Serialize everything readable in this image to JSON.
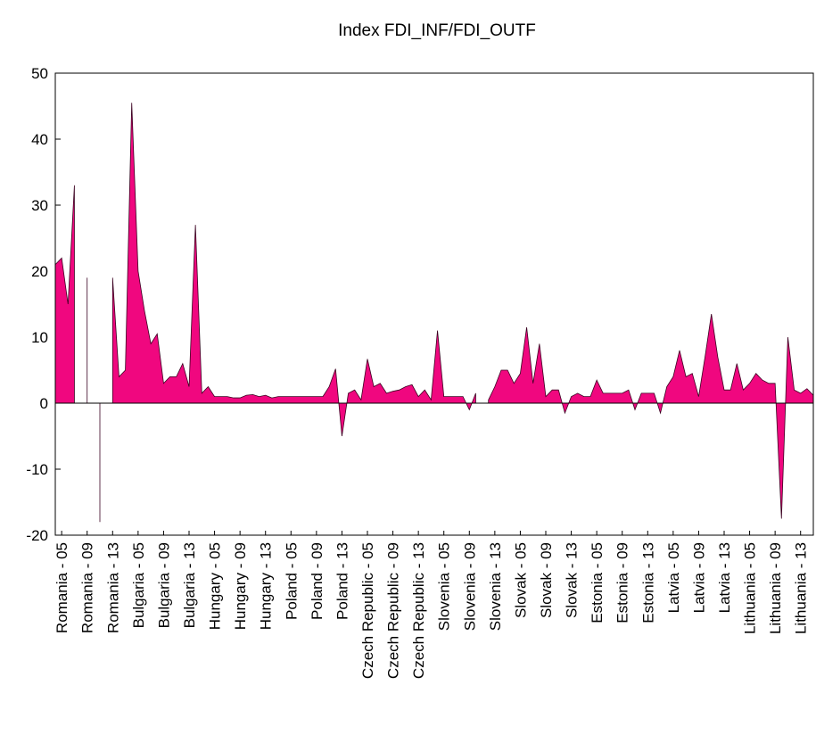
{
  "chart_data": {
    "type": "area",
    "title": "Index FDI_INF/FDI_OUTF",
    "categories": [
      null,
      "Romania - 05",
      null,
      null,
      null,
      "Romania - 09",
      null,
      null,
      null,
      "Romania - 13",
      null,
      null,
      null,
      "Bulgaria - 05",
      null,
      null,
      null,
      "Bulgaria - 09",
      null,
      null,
      null,
      "Bulgaria - 13",
      null,
      null,
      null,
      "Hungary - 05",
      null,
      null,
      null,
      "Hungary - 09",
      null,
      null,
      null,
      "Hungary - 13",
      null,
      null,
      null,
      "Poland - 05",
      null,
      null,
      null,
      "Poland - 09",
      null,
      null,
      null,
      "Poland - 13",
      null,
      null,
      null,
      "Czech Republic - 05",
      null,
      null,
      null,
      "Czech Republic - 09",
      null,
      null,
      null,
      "Czech Republic - 13",
      null,
      null,
      null,
      "Slovenia - 05",
      null,
      null,
      null,
      "Slovenia - 09",
      null,
      null,
      null,
      "Slovenia - 13",
      null,
      null,
      null,
      "Slovak - 05",
      null,
      null,
      null,
      "Slovak - 09",
      null,
      null,
      null,
      "Slovak - 13",
      null,
      null,
      null,
      "Estonia - 05",
      null,
      null,
      null,
      "Estonia - 09",
      null,
      null,
      null,
      "Estonia - 13",
      null,
      null,
      null,
      "Latvia - 05",
      null,
      null,
      null,
      "Latvia - 09",
      null,
      null,
      null,
      "Latvia - 13",
      null,
      null,
      null,
      "Lithuania - 05",
      null,
      null,
      null,
      "Lithuania - 09",
      null,
      null,
      null,
      "Lithuania - 13",
      null,
      null
    ],
    "values": [
      21,
      22,
      15,
      33,
      null,
      19,
      null,
      -18,
      null,
      19,
      4,
      5,
      45.5,
      20,
      14,
      9,
      10.5,
      3,
      4,
      4,
      6,
      2.5,
      27,
      1.5,
      2.5,
      1,
      1,
      1,
      0.8,
      0.8,
      1.2,
      1.3,
      1,
      1.2,
      0.8,
      1,
      1,
      1,
      1,
      1,
      1,
      1,
      1,
      2.5,
      5.2,
      -5,
      1.5,
      2,
      0.5,
      6.7,
      2.5,
      3,
      1.5,
      1.8,
      2,
      2.5,
      2.8,
      1,
      2,
      0.5,
      11,
      1,
      1,
      1,
      1,
      -1,
      1.5,
      null,
      0.5,
      2.5,
      5,
      5,
      3,
      4.5,
      11.5,
      3,
      9,
      1,
      2,
      2,
      -1.5,
      1,
      1.5,
      1,
      1,
      3.5,
      1.5,
      1.5,
      1.5,
      1.5,
      2,
      -1,
      1.5,
      1.5,
      1.5,
      -1.5,
      2.5,
      4,
      8,
      4,
      4.5,
      1,
      7,
      13.5,
      7,
      2,
      2,
      6,
      2,
      3,
      4.5,
      3.5,
      3,
      3,
      -17.5,
      10,
      2,
      1.5,
      2.2,
      1.2
    ],
    "color": "#f0077f",
    "ylim": [
      -20,
      50
    ],
    "yticks": [
      -20,
      -10,
      0,
      10,
      20,
      30,
      40,
      50
    ]
  }
}
